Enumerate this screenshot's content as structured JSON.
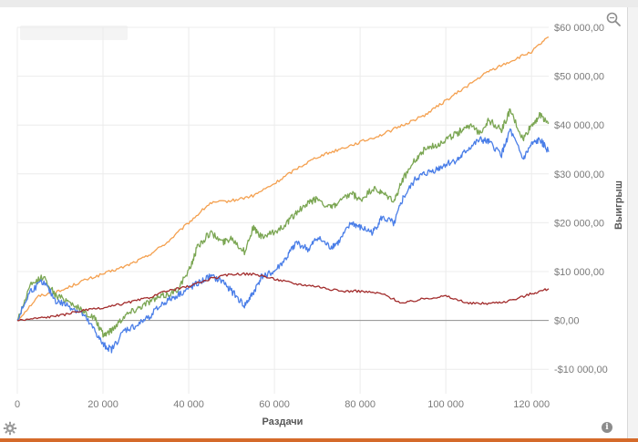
{
  "chart_data": {
    "type": "line",
    "title": "",
    "xlabel": "Раздачи",
    "ylabel": "Выигрыш",
    "xlim": [
      0,
      124000
    ],
    "ylim": [
      -15000,
      60000
    ],
    "x_ticks": [
      0,
      20000,
      40000,
      60000,
      80000,
      100000,
      120000
    ],
    "x_tick_labels": [
      "0",
      "20 000",
      "40 000",
      "60 000",
      "80 000",
      "100 000",
      "120 000"
    ],
    "y_ticks": [
      -10000,
      0,
      10000,
      20000,
      30000,
      40000,
      50000,
      60000
    ],
    "y_tick_labels": [
      "-$10 000,00",
      "$0,00",
      "$10 000,00",
      "$20 000,00",
      "$30 000,00",
      "$40 000,00",
      "$50 000,00",
      "$60 000,00"
    ],
    "grid": true,
    "y_axis_position": "right",
    "series": [
      {
        "color": "#f4a04f",
        "x": [
          0,
          5000,
          10000,
          15000,
          20000,
          25000,
          30000,
          35000,
          40000,
          45000,
          50000,
          55000,
          60000,
          65000,
          70000,
          75000,
          80000,
          85000,
          90000,
          95000,
          100000,
          105000,
          110000,
          115000,
          120000,
          124000
        ],
        "values": [
          0,
          5000,
          6000,
          8000,
          9500,
          11000,
          13000,
          16000,
          20000,
          24000,
          24500,
          25500,
          28000,
          31000,
          33500,
          35000,
          36500,
          38000,
          40000,
          42000,
          45000,
          48000,
          51000,
          53000,
          55000,
          58000
        ]
      },
      {
        "color": "#7ba653",
        "x": [
          0,
          3000,
          6000,
          9000,
          12000,
          15000,
          18000,
          20000,
          22000,
          25000,
          28000,
          31000,
          34000,
          37000,
          40000,
          42000,
          45000,
          48000,
          50000,
          53000,
          55000,
          57000,
          60000,
          63000,
          65000,
          68000,
          70000,
          73000,
          75000,
          78000,
          80000,
          83000,
          85000,
          88000,
          90000,
          93000,
          95000,
          98000,
          100000,
          103000,
          105000,
          108000,
          110000,
          113000,
          115000,
          118000,
          120000,
          122000,
          124000
        ],
        "values": [
          0,
          7000,
          9000,
          5000,
          4000,
          2000,
          500,
          -3000,
          -2000,
          1000,
          2500,
          4000,
          5000,
          6000,
          10000,
          15000,
          18000,
          16000,
          17000,
          14000,
          19000,
          17000,
          18000,
          20000,
          22000,
          24000,
          25000,
          23000,
          24000,
          26000,
          24500,
          27000,
          26000,
          24500,
          29000,
          33000,
          35000,
          36000,
          37000,
          38500,
          40000,
          38500,
          41000,
          39000,
          43000,
          37000,
          40000,
          42000,
          40500
        ]
      },
      {
        "color": "#4a7ee8",
        "x": [
          0,
          3000,
          6000,
          9000,
          12000,
          15000,
          18000,
          20000,
          22000,
          25000,
          28000,
          31000,
          34000,
          37000,
          40000,
          42000,
          45000,
          48000,
          50000,
          53000,
          55000,
          57000,
          60000,
          63000,
          65000,
          68000,
          70000,
          73000,
          75000,
          78000,
          80000,
          83000,
          85000,
          88000,
          90000,
          93000,
          95000,
          98000,
          100000,
          103000,
          105000,
          108000,
          110000,
          113000,
          115000,
          118000,
          120000,
          122000,
          124000
        ],
        "values": [
          0,
          6000,
          8000,
          4000,
          3000,
          1500,
          -2000,
          -5000,
          -6000,
          -2000,
          -1000,
          1000,
          3500,
          5000,
          6500,
          7500,
          9000,
          8000,
          6000,
          3000,
          5500,
          9000,
          10000,
          13000,
          16000,
          14500,
          17000,
          15000,
          16000,
          20000,
          19000,
          18000,
          21000,
          20000,
          25000,
          29000,
          30000,
          31000,
          32000,
          33000,
          35000,
          37000,
          36500,
          34000,
          39000,
          33000,
          36000,
          37000,
          34500
        ]
      },
      {
        "color": "#a22c2c",
        "x": [
          0,
          5000,
          10000,
          15000,
          20000,
          25000,
          30000,
          35000,
          40000,
          45000,
          50000,
          55000,
          60000,
          65000,
          70000,
          75000,
          80000,
          85000,
          90000,
          95000,
          100000,
          105000,
          110000,
          115000,
          120000,
          124000
        ],
        "values": [
          0,
          500,
          1000,
          2000,
          2500,
          3500,
          4500,
          6000,
          7000,
          8500,
          9500,
          9500,
          8500,
          7500,
          7000,
          6000,
          6000,
          5500,
          3500,
          4500,
          5000,
          3500,
          3500,
          4000,
          5500,
          6500
        ]
      }
    ]
  },
  "icons": {
    "zoom": "zoom-icon",
    "settings": "gear-icon",
    "info": "info-icon",
    "info_glyph": "i"
  },
  "colors": {
    "zero_line": "#8f8f8f",
    "grid": "#ececec",
    "accent_bar": "#d56a2a"
  }
}
